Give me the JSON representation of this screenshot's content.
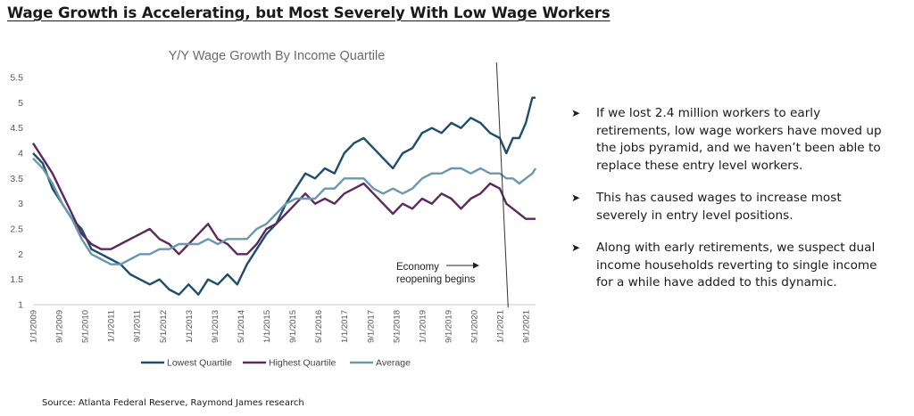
{
  "headline": "Wage Growth is Accelerating, but Most Severely With Low Wage Workers",
  "bullets": [
    {
      "icon": "arrow-bullet-icon",
      "text": "If we lost 2.4 million workers to early retirements, low wage workers have moved up the jobs pyramid, and we haven’t been able to replace these entry level workers."
    },
    {
      "icon": "arrow-bullet-icon",
      "text": "This has caused wages to increase most severely in entry level positions."
    },
    {
      "icon": "arrow-bullet-icon",
      "text": "Along with early retirements, we suspect dual income households reverting to single income for a while have added to this dynamic."
    }
  ],
  "source": "Source: Atlanta Federal Reserve, Raymond James research",
  "chart_data": {
    "type": "line",
    "title": "Y/Y Wage Growth By Income Quartile",
    "xlabel": "",
    "ylabel": "",
    "ylim": [
      1,
      5.5
    ],
    "yticks": [
      "1",
      "1.5",
      "2",
      "2.5",
      "3",
      "3.5",
      "4",
      "4.5",
      "5",
      "5.5"
    ],
    "x_tick_labels": [
      "1/1/2009",
      "9/1/2009",
      "5/1/2010",
      "1/1/2011",
      "9/1/2011",
      "5/1/2012",
      "1/1/2013",
      "9/1/2013",
      "5/1/2014",
      "1/1/2015",
      "9/1/2015",
      "5/1/2016",
      "1/1/2017",
      "9/1/2017",
      "5/1/2018",
      "1/1/2019",
      "9/1/2019",
      "5/1/2020",
      "1/1/2021",
      "9/1/2021"
    ],
    "x_start": "2009-01",
    "x_end": "2021-12",
    "grid": false,
    "legend_position": "bottom",
    "annotation": {
      "text_lines": [
        "Economy",
        "reopening begins"
      ],
      "date": "2021-03"
    },
    "series": [
      {
        "name": "Lowest Quartile",
        "color": "#1f4e6b",
        "points": [
          [
            "2009-01",
            4.0
          ],
          [
            "2009-04",
            3.8
          ],
          [
            "2009-07",
            3.3
          ],
          [
            "2009-10",
            3.0
          ],
          [
            "2010-01",
            2.7
          ],
          [
            "2010-04",
            2.5
          ],
          [
            "2010-07",
            2.1
          ],
          [
            "2010-10",
            2.0
          ],
          [
            "2011-01",
            1.9
          ],
          [
            "2011-04",
            1.8
          ],
          [
            "2011-07",
            1.6
          ],
          [
            "2011-10",
            1.5
          ],
          [
            "2012-01",
            1.4
          ],
          [
            "2012-04",
            1.5
          ],
          [
            "2012-07",
            1.3
          ],
          [
            "2012-10",
            1.2
          ],
          [
            "2013-01",
            1.4
          ],
          [
            "2013-04",
            1.2
          ],
          [
            "2013-07",
            1.5
          ],
          [
            "2013-10",
            1.4
          ],
          [
            "2014-01",
            1.6
          ],
          [
            "2014-04",
            1.4
          ],
          [
            "2014-07",
            1.8
          ],
          [
            "2014-10",
            2.1
          ],
          [
            "2015-01",
            2.4
          ],
          [
            "2015-04",
            2.6
          ],
          [
            "2015-07",
            3.0
          ],
          [
            "2015-10",
            3.3
          ],
          [
            "2016-01",
            3.6
          ],
          [
            "2016-04",
            3.5
          ],
          [
            "2016-07",
            3.7
          ],
          [
            "2016-10",
            3.6
          ],
          [
            "2017-01",
            4.0
          ],
          [
            "2017-04",
            4.2
          ],
          [
            "2017-07",
            4.3
          ],
          [
            "2017-10",
            4.1
          ],
          [
            "2018-01",
            3.9
          ],
          [
            "2018-04",
            3.7
          ],
          [
            "2018-07",
            4.0
          ],
          [
            "2018-10",
            4.1
          ],
          [
            "2019-01",
            4.4
          ],
          [
            "2019-04",
            4.5
          ],
          [
            "2019-07",
            4.4
          ],
          [
            "2019-10",
            4.6
          ],
          [
            "2020-01",
            4.5
          ],
          [
            "2020-04",
            4.7
          ],
          [
            "2020-07",
            4.6
          ],
          [
            "2020-10",
            4.4
          ],
          [
            "2021-01",
            4.3
          ],
          [
            "2021-03",
            4.0
          ],
          [
            "2021-05",
            4.3
          ],
          [
            "2021-07",
            4.3
          ],
          [
            "2021-09",
            4.6
          ],
          [
            "2021-11",
            5.1
          ],
          [
            "2021-12",
            5.1
          ]
        ]
      },
      {
        "name": "Highest Quartile",
        "color": "#5b2a5e",
        "points": [
          [
            "2009-01",
            4.2
          ],
          [
            "2009-04",
            3.9
          ],
          [
            "2009-07",
            3.6
          ],
          [
            "2009-10",
            3.2
          ],
          [
            "2010-01",
            2.8
          ],
          [
            "2010-04",
            2.4
          ],
          [
            "2010-07",
            2.2
          ],
          [
            "2010-10",
            2.1
          ],
          [
            "2011-01",
            2.1
          ],
          [
            "2011-04",
            2.2
          ],
          [
            "2011-07",
            2.3
          ],
          [
            "2011-10",
            2.4
          ],
          [
            "2012-01",
            2.5
          ],
          [
            "2012-04",
            2.3
          ],
          [
            "2012-07",
            2.2
          ],
          [
            "2012-10",
            2.0
          ],
          [
            "2013-01",
            2.2
          ],
          [
            "2013-04",
            2.4
          ],
          [
            "2013-07",
            2.6
          ],
          [
            "2013-10",
            2.3
          ],
          [
            "2014-01",
            2.2
          ],
          [
            "2014-04",
            2.0
          ],
          [
            "2014-07",
            2.0
          ],
          [
            "2014-10",
            2.2
          ],
          [
            "2015-01",
            2.5
          ],
          [
            "2015-04",
            2.6
          ],
          [
            "2015-07",
            2.8
          ],
          [
            "2015-10",
            3.0
          ],
          [
            "2016-01",
            3.2
          ],
          [
            "2016-04",
            3.0
          ],
          [
            "2016-07",
            3.1
          ],
          [
            "2016-10",
            3.0
          ],
          [
            "2017-01",
            3.2
          ],
          [
            "2017-04",
            3.3
          ],
          [
            "2017-07",
            3.4
          ],
          [
            "2017-10",
            3.2
          ],
          [
            "2018-01",
            3.0
          ],
          [
            "2018-04",
            2.8
          ],
          [
            "2018-07",
            3.0
          ],
          [
            "2018-10",
            2.9
          ],
          [
            "2019-01",
            3.1
          ],
          [
            "2019-04",
            3.0
          ],
          [
            "2019-07",
            3.2
          ],
          [
            "2019-10",
            3.1
          ],
          [
            "2020-01",
            2.9
          ],
          [
            "2020-04",
            3.1
          ],
          [
            "2020-07",
            3.2
          ],
          [
            "2020-10",
            3.4
          ],
          [
            "2021-01",
            3.3
          ],
          [
            "2021-03",
            3.0
          ],
          [
            "2021-05",
            2.9
          ],
          [
            "2021-07",
            2.8
          ],
          [
            "2021-09",
            2.7
          ],
          [
            "2021-11",
            2.7
          ],
          [
            "2021-12",
            2.7
          ]
        ]
      },
      {
        "name": "Average",
        "color": "#6c97b0",
        "points": [
          [
            "2009-01",
            3.9
          ],
          [
            "2009-04",
            3.7
          ],
          [
            "2009-07",
            3.4
          ],
          [
            "2009-10",
            3.0
          ],
          [
            "2010-01",
            2.7
          ],
          [
            "2010-04",
            2.3
          ],
          [
            "2010-07",
            2.0
          ],
          [
            "2010-10",
            1.9
          ],
          [
            "2011-01",
            1.8
          ],
          [
            "2011-04",
            1.8
          ],
          [
            "2011-07",
            1.9
          ],
          [
            "2011-10",
            2.0
          ],
          [
            "2012-01",
            2.0
          ],
          [
            "2012-04",
            2.1
          ],
          [
            "2012-07",
            2.1
          ],
          [
            "2012-10",
            2.2
          ],
          [
            "2013-01",
            2.2
          ],
          [
            "2013-04",
            2.2
          ],
          [
            "2013-07",
            2.3
          ],
          [
            "2013-10",
            2.2
          ],
          [
            "2014-01",
            2.3
          ],
          [
            "2014-04",
            2.3
          ],
          [
            "2014-07",
            2.3
          ],
          [
            "2014-10",
            2.5
          ],
          [
            "2015-01",
            2.6
          ],
          [
            "2015-04",
            2.8
          ],
          [
            "2015-07",
            3.0
          ],
          [
            "2015-10",
            3.1
          ],
          [
            "2016-01",
            3.1
          ],
          [
            "2016-04",
            3.1
          ],
          [
            "2016-07",
            3.3
          ],
          [
            "2016-10",
            3.3
          ],
          [
            "2017-01",
            3.5
          ],
          [
            "2017-04",
            3.5
          ],
          [
            "2017-07",
            3.5
          ],
          [
            "2017-10",
            3.3
          ],
          [
            "2018-01",
            3.2
          ],
          [
            "2018-04",
            3.3
          ],
          [
            "2018-07",
            3.2
          ],
          [
            "2018-10",
            3.3
          ],
          [
            "2019-01",
            3.5
          ],
          [
            "2019-04",
            3.6
          ],
          [
            "2019-07",
            3.6
          ],
          [
            "2019-10",
            3.7
          ],
          [
            "2020-01",
            3.7
          ],
          [
            "2020-04",
            3.6
          ],
          [
            "2020-07",
            3.7
          ],
          [
            "2020-10",
            3.6
          ],
          [
            "2021-01",
            3.6
          ],
          [
            "2021-03",
            3.5
          ],
          [
            "2021-05",
            3.5
          ],
          [
            "2021-07",
            3.4
          ],
          [
            "2021-09",
            3.5
          ],
          [
            "2021-11",
            3.6
          ],
          [
            "2021-12",
            3.7
          ]
        ]
      }
    ]
  }
}
